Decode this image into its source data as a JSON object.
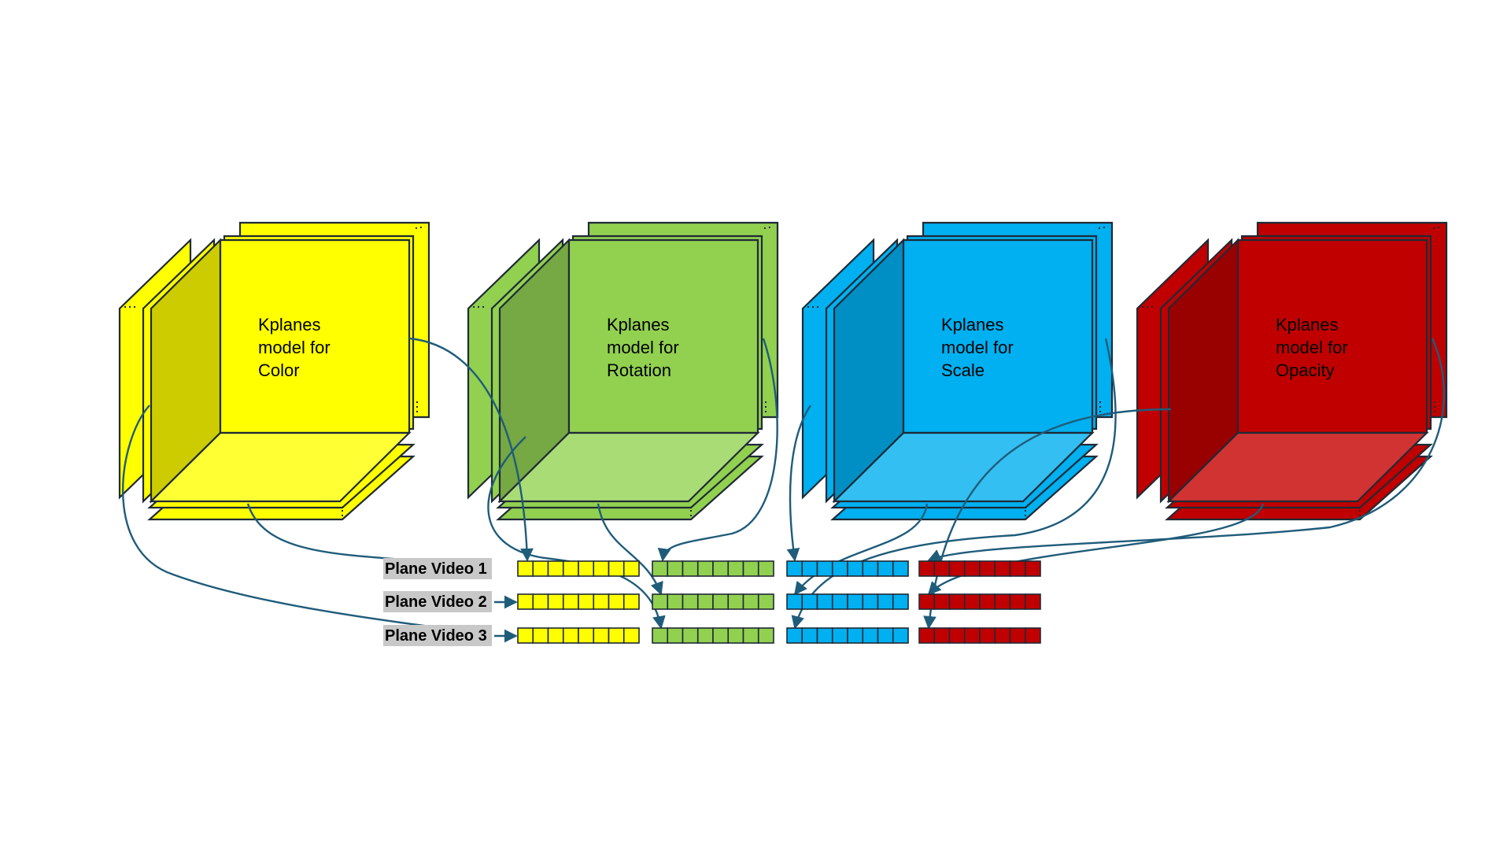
{
  "cubes": [
    {
      "id": "color",
      "label_lines": [
        "Kplanes",
        "model for",
        "Color"
      ],
      "colors": {
        "front": "#ffff00",
        "side": "#cccc00",
        "floor": "#ffff33",
        "under": "#ffff00"
      }
    },
    {
      "id": "rotation",
      "label_lines": [
        "Kplanes",
        "model for",
        "Rotation"
      ],
      "colors": {
        "front": "#92d050",
        "side": "#76a843",
        "floor": "#a9dc75",
        "under": "#92d050"
      }
    },
    {
      "id": "scale",
      "label_lines": [
        "Kplanes",
        "model for",
        "Scale"
      ],
      "colors": {
        "front": "#00b0f0",
        "side": "#008fc4",
        "floor": "#33bff2",
        "under": "#00b0f0"
      }
    },
    {
      "id": "opacity",
      "label_lines": [
        "Kplanes",
        "model for",
        "Opacity"
      ],
      "colors": {
        "front": "#c00000",
        "side": "#990000",
        "floor": "#d13333",
        "under": "#c00000"
      }
    }
  ],
  "rows": [
    {
      "label": "Plane Video 1"
    },
    {
      "label": "Plane Video 2"
    },
    {
      "label": "Plane Video 3"
    }
  ],
  "feature_cells_per_bar": 8,
  "colors": {
    "connector": "#1f5c7a",
    "outline": "#1f2a36",
    "row_label_bg": "#c8c8c8"
  }
}
